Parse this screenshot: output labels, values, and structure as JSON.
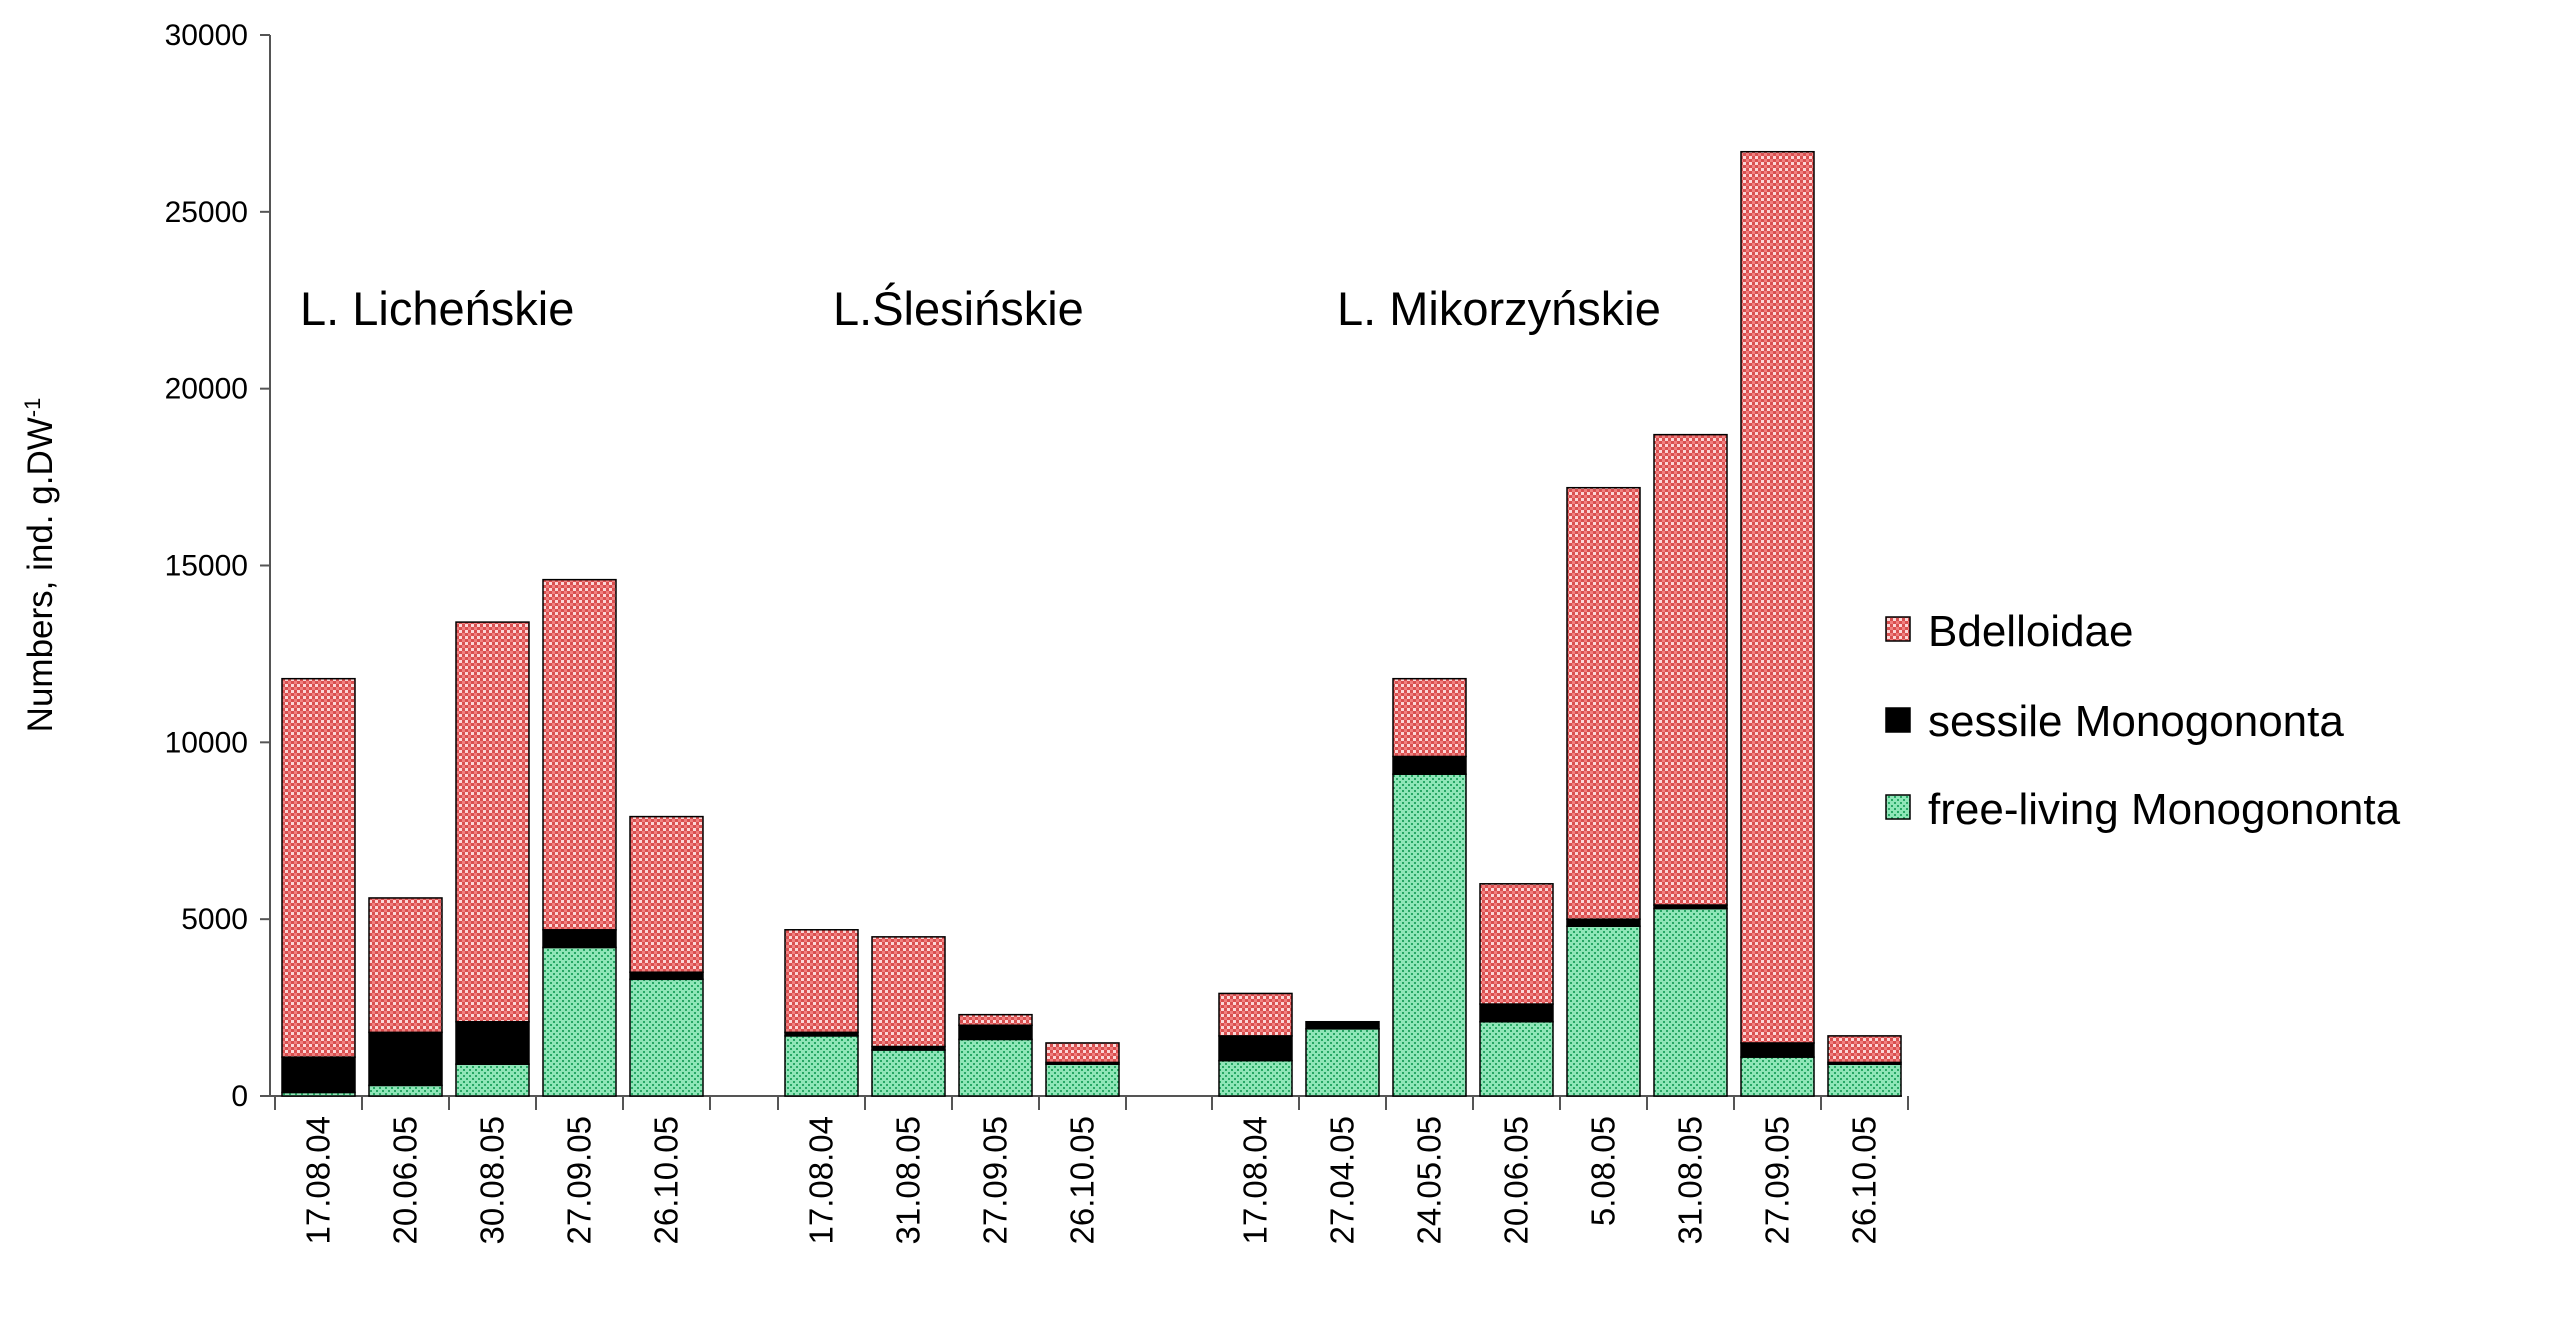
{
  "chart_data": {
    "type": "bar",
    "stacked": true,
    "title": "",
    "xlabel": "",
    "ylabel": "Numbers, ind. g.DW",
    "ylabel_superscript": "-1",
    "ylim": [
      0,
      30000
    ],
    "yticks": [
      0,
      5000,
      10000,
      15000,
      20000,
      25000,
      30000
    ],
    "grid": false,
    "legend_position": "right",
    "colors": {
      "Bdelloidae": "#f08080",
      "sessile Monogononta": "#000000",
      "free-living Monogononta": "#5fd69a"
    },
    "groups": [
      {
        "name": "L. Licheńskie",
        "categories": [
          "17.08.04",
          "20.06.05",
          "30.08.05",
          "27.09.05",
          "26.10.05"
        ],
        "series": [
          {
            "name": "free-living Monogononta",
            "values": [
              100,
              300,
              900,
              4200,
              3300
            ]
          },
          {
            "name": "sessile Monogononta",
            "values": [
              1000,
              1500,
              1200,
              500,
              200
            ]
          },
          {
            "name": "Bdelloidae",
            "values": [
              10700,
              3800,
              11300,
              9900,
              4400
            ]
          }
        ]
      },
      {
        "name": "L.Ślesińskie",
        "categories": [
          "17.08.04",
          "31.08.05",
          "27.09.05",
          "26.10.05"
        ],
        "series": [
          {
            "name": "free-living Monogononta",
            "values": [
              1700,
              1300,
              1600,
              900
            ]
          },
          {
            "name": "sessile Monogononta",
            "values": [
              100,
              100,
              400,
              50
            ]
          },
          {
            "name": "Bdelloidae",
            "values": [
              2900,
              3100,
              300,
              550
            ]
          }
        ]
      },
      {
        "name": "L. Mikorzyńskie",
        "categories": [
          "17.08.04",
          "27.04.05",
          "24.05.05",
          "20.06.05",
          "5.08.05",
          "31.08.05",
          "27.09.05",
          "26.10.05"
        ],
        "series": [
          {
            "name": "free-living Monogononta",
            "values": [
              1000,
              1900,
              9100,
              2100,
              4800,
              5300,
              1100,
              900
            ]
          },
          {
            "name": "sessile Monogononta",
            "values": [
              700,
              200,
              500,
              500,
              200,
              100,
              400,
              50
            ]
          },
          {
            "name": "Bdelloidae",
            "values": [
              1200,
              0,
              2200,
              3400,
              12200,
              13300,
              25200,
              750
            ]
          }
        ]
      }
    ],
    "legend": [
      "Bdelloidae",
      "sessile Monogononta",
      "free-living Monogononta"
    ]
  }
}
